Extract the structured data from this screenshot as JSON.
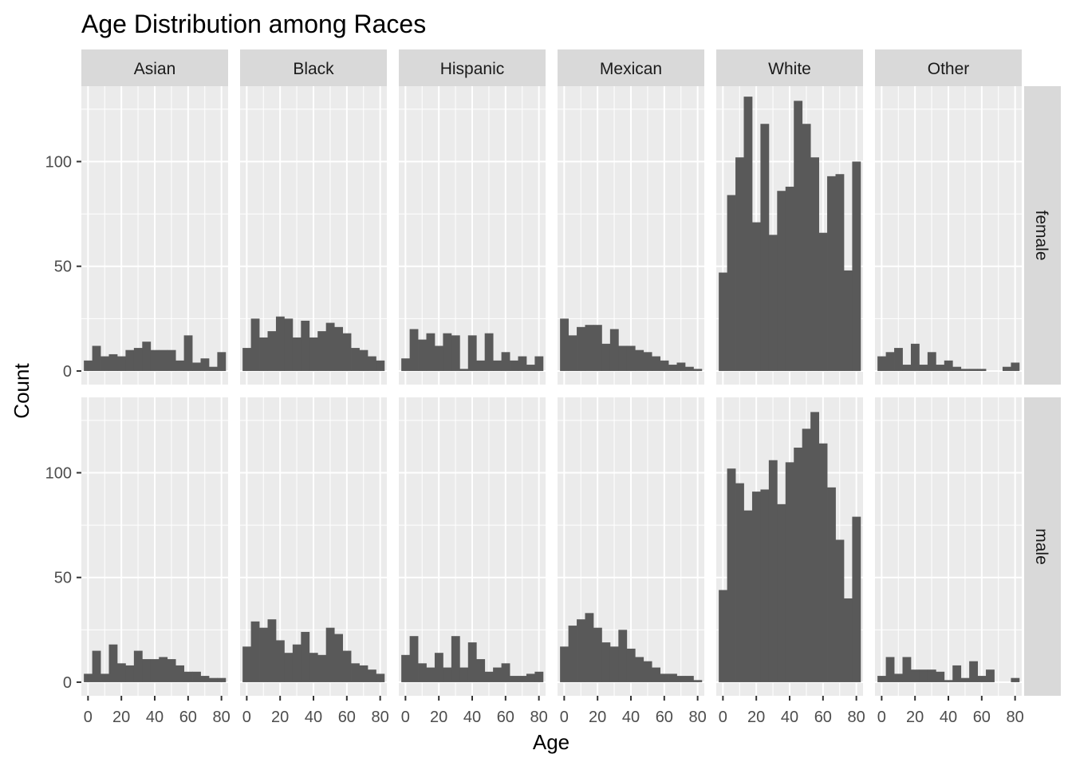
{
  "chart_data": {
    "type": "bar",
    "title": "Age Distribution among Races",
    "xlabel": "Age",
    "ylabel": "Count",
    "facet_cols": [
      "Asian",
      "Black",
      "Hispanic",
      "Mexican",
      "White",
      "Other"
    ],
    "facet_rows": [
      "female",
      "male"
    ],
    "x_ticks": [
      0,
      20,
      40,
      60,
      80
    ],
    "x_ticks_labels": [
      "0",
      "20",
      "40",
      "60",
      "80"
    ],
    "y_ticks": [
      0,
      50,
      100
    ],
    "y_ticks_labels": [
      "0",
      "50",
      "100"
    ],
    "xlim": [
      -4,
      84
    ],
    "ylim": [
      -6.5,
      136
    ],
    "bin_centers": [
      0,
      5,
      10,
      15,
      20,
      25,
      30,
      35,
      40,
      45,
      50,
      55,
      60,
      65,
      70,
      75,
      80
    ],
    "grid": true,
    "panels": {
      "female": {
        "Asian": [
          5,
          12,
          7,
          8,
          7,
          10,
          11,
          14,
          10,
          10,
          10,
          5,
          17,
          4,
          6,
          2,
          9
        ],
        "Black": [
          11,
          25,
          16,
          19,
          26,
          25,
          16,
          24,
          16,
          19,
          23,
          21,
          18,
          11,
          10,
          7,
          5
        ],
        "Hispanic": [
          6,
          20,
          15,
          18,
          12,
          18,
          17,
          1,
          17,
          5,
          18,
          5,
          9,
          5,
          7,
          3,
          7
        ],
        "Mexican": [
          25,
          17,
          21,
          22,
          22,
          13,
          20,
          12,
          12,
          10,
          9,
          7,
          5,
          3,
          4,
          2,
          1
        ],
        "White": [
          47,
          84,
          102,
          131,
          71,
          118,
          65,
          86,
          88,
          129,
          118,
          102,
          66,
          93,
          94,
          48,
          100
        ],
        "Other": [
          7,
          9,
          11,
          3,
          13,
          3,
          9,
          3,
          5,
          2,
          1,
          1,
          1,
          0,
          0,
          2,
          4
        ]
      },
      "male": {
        "Asian": [
          4,
          15,
          4,
          18,
          9,
          8,
          15,
          11,
          11,
          12,
          11,
          8,
          5,
          5,
          3,
          2,
          2
        ],
        "Black": [
          17,
          29,
          26,
          30,
          20,
          14,
          18,
          24,
          14,
          13,
          26,
          23,
          15,
          9,
          8,
          6,
          4
        ],
        "Hispanic": [
          13,
          22,
          9,
          7,
          14,
          7,
          22,
          7,
          19,
          11,
          5,
          7,
          9,
          3,
          3,
          4,
          5
        ],
        "Mexican": [
          17,
          27,
          30,
          33,
          26,
          19,
          17,
          25,
          16,
          12,
          10,
          7,
          4,
          4,
          3,
          3,
          1
        ],
        "White": [
          44,
          102,
          95,
          82,
          91,
          92,
          106,
          85,
          105,
          112,
          121,
          129,
          114,
          93,
          68,
          40,
          79
        ],
        "Other": [
          3,
          12,
          4,
          12,
          6,
          6,
          6,
          5,
          1,
          8,
          2,
          10,
          3,
          6,
          0,
          0,
          2
        ]
      }
    },
    "colors": {
      "bar": "#595959",
      "panel_bg": "#ebebeb",
      "strip_bg": "#d9d9d9",
      "grid_major": "#ffffff",
      "text": "#1a1a1a",
      "tick_text": "#4d4d4d"
    }
  }
}
